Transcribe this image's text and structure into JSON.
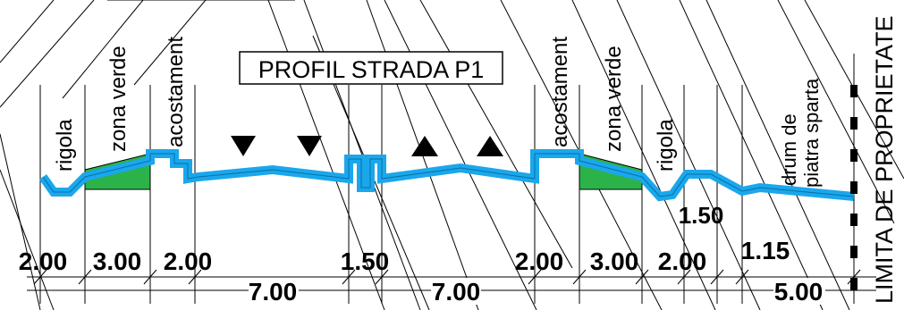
{
  "title": "PROFIL STRADA P1",
  "colors": {
    "road": "#1aa7ec",
    "green": "#2bb34a",
    "line": "#000000",
    "background": "#ffffff"
  },
  "labels": {
    "rigola_left": "rigola",
    "zona_verde_left": "zona verde",
    "acostament_left": "acostament",
    "acostament_right": "acostament",
    "zona_verde_right": "zona verde",
    "rigola_right": "rigola",
    "drum_line1": "drum de",
    "drum_line2": "piatra sparta",
    "limita": "LIMITA DE PROPRIETATE"
  },
  "dimensions_top": [
    "2.00",
    "3.00",
    "2.00",
    "1.50",
    "2.00",
    "3.00",
    "2.00",
    "1.15"
  ],
  "dimension_side": "1.50",
  "dimensions_bottom": [
    "7.00",
    "7.00",
    "5.00"
  ],
  "symbols": {
    "down_arrows": [
      "down-triangle",
      "down-triangle"
    ],
    "up_arrows": [
      "up-triangle",
      "up-triangle"
    ]
  }
}
